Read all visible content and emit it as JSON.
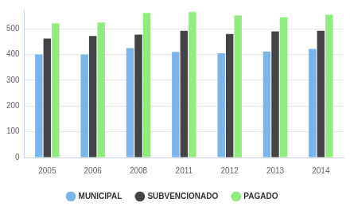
{
  "chart_data": {
    "type": "bar",
    "categories": [
      "2005",
      "2006",
      "2008",
      "2011",
      "2012",
      "2013",
      "2014"
    ],
    "series": [
      {
        "name": "MUNICIPAL",
        "color": "#7cb5ec",
        "values": [
          400,
          400,
          425,
          410,
          405,
          412,
          422
        ]
      },
      {
        "name": "SUBVENCIONADO",
        "color": "#434348",
        "values": [
          462,
          472,
          478,
          492,
          480,
          490,
          492
        ]
      },
      {
        "name": "PAGADO",
        "color": "#90ed7d",
        "values": [
          522,
          525,
          562,
          565,
          552,
          545,
          555
        ]
      }
    ],
    "ylim": [
      0,
      575
    ],
    "yticks": [
      0,
      100,
      200,
      300,
      400,
      500
    ],
    "grid": true,
    "legend": "bottom"
  }
}
